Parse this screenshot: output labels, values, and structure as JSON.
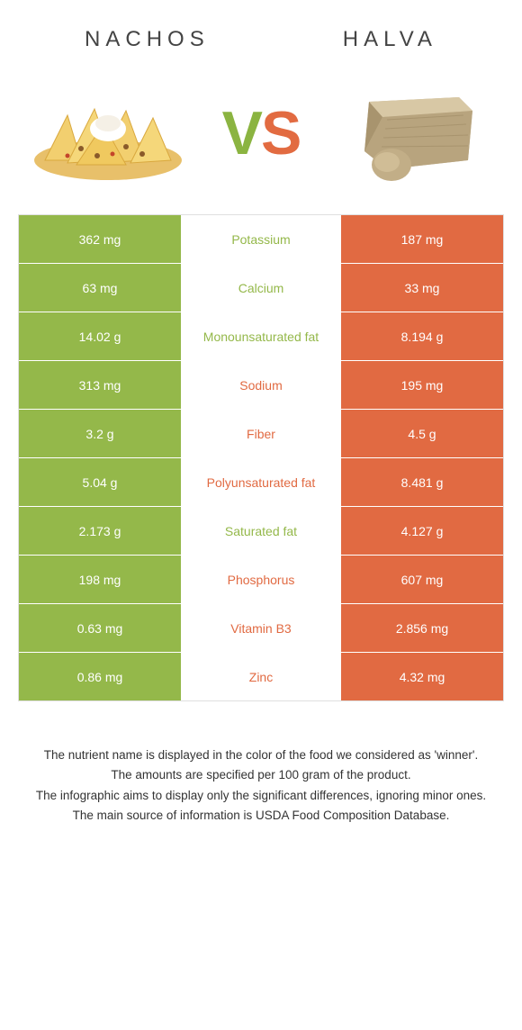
{
  "colors": {
    "left": "#94b84a",
    "right": "#e16a42",
    "row_border": "#ffffff",
    "background": "#ffffff",
    "text_light": "#ffffff",
    "text_dark": "#333333"
  },
  "header": {
    "left_title": "Nachos",
    "right_title": "Halva",
    "vs_v": "V",
    "vs_s": "S"
  },
  "rows": [
    {
      "label": "Potassium",
      "left": "362 mg",
      "right": "187 mg",
      "winner": "left"
    },
    {
      "label": "Calcium",
      "left": "63 mg",
      "right": "33 mg",
      "winner": "left"
    },
    {
      "label": "Monounsaturated fat",
      "left": "14.02 g",
      "right": "8.194 g",
      "winner": "left"
    },
    {
      "label": "Sodium",
      "left": "313 mg",
      "right": "195 mg",
      "winner": "right"
    },
    {
      "label": "Fiber",
      "left": "3.2 g",
      "right": "4.5 g",
      "winner": "right"
    },
    {
      "label": "Polyunsaturated fat",
      "left": "5.04 g",
      "right": "8.481 g",
      "winner": "right"
    },
    {
      "label": "Saturated fat",
      "left": "2.173 g",
      "right": "4.127 g",
      "winner": "left"
    },
    {
      "label": "Phosphorus",
      "left": "198 mg",
      "right": "607 mg",
      "winner": "right"
    },
    {
      "label": "Vitamin B3",
      "left": "0.63 mg",
      "right": "2.856 mg",
      "winner": "right"
    },
    {
      "label": "Zinc",
      "left": "0.86 mg",
      "right": "4.32 mg",
      "winner": "right"
    }
  ],
  "footnotes": [
    "The nutrient name is displayed in the color of the food we considered as 'winner'.",
    "The amounts are specified per 100 gram of the product.",
    "The infographic aims to display only the significant differences, ignoring minor ones.",
    "The main source of information is USDA Food Composition Database."
  ]
}
